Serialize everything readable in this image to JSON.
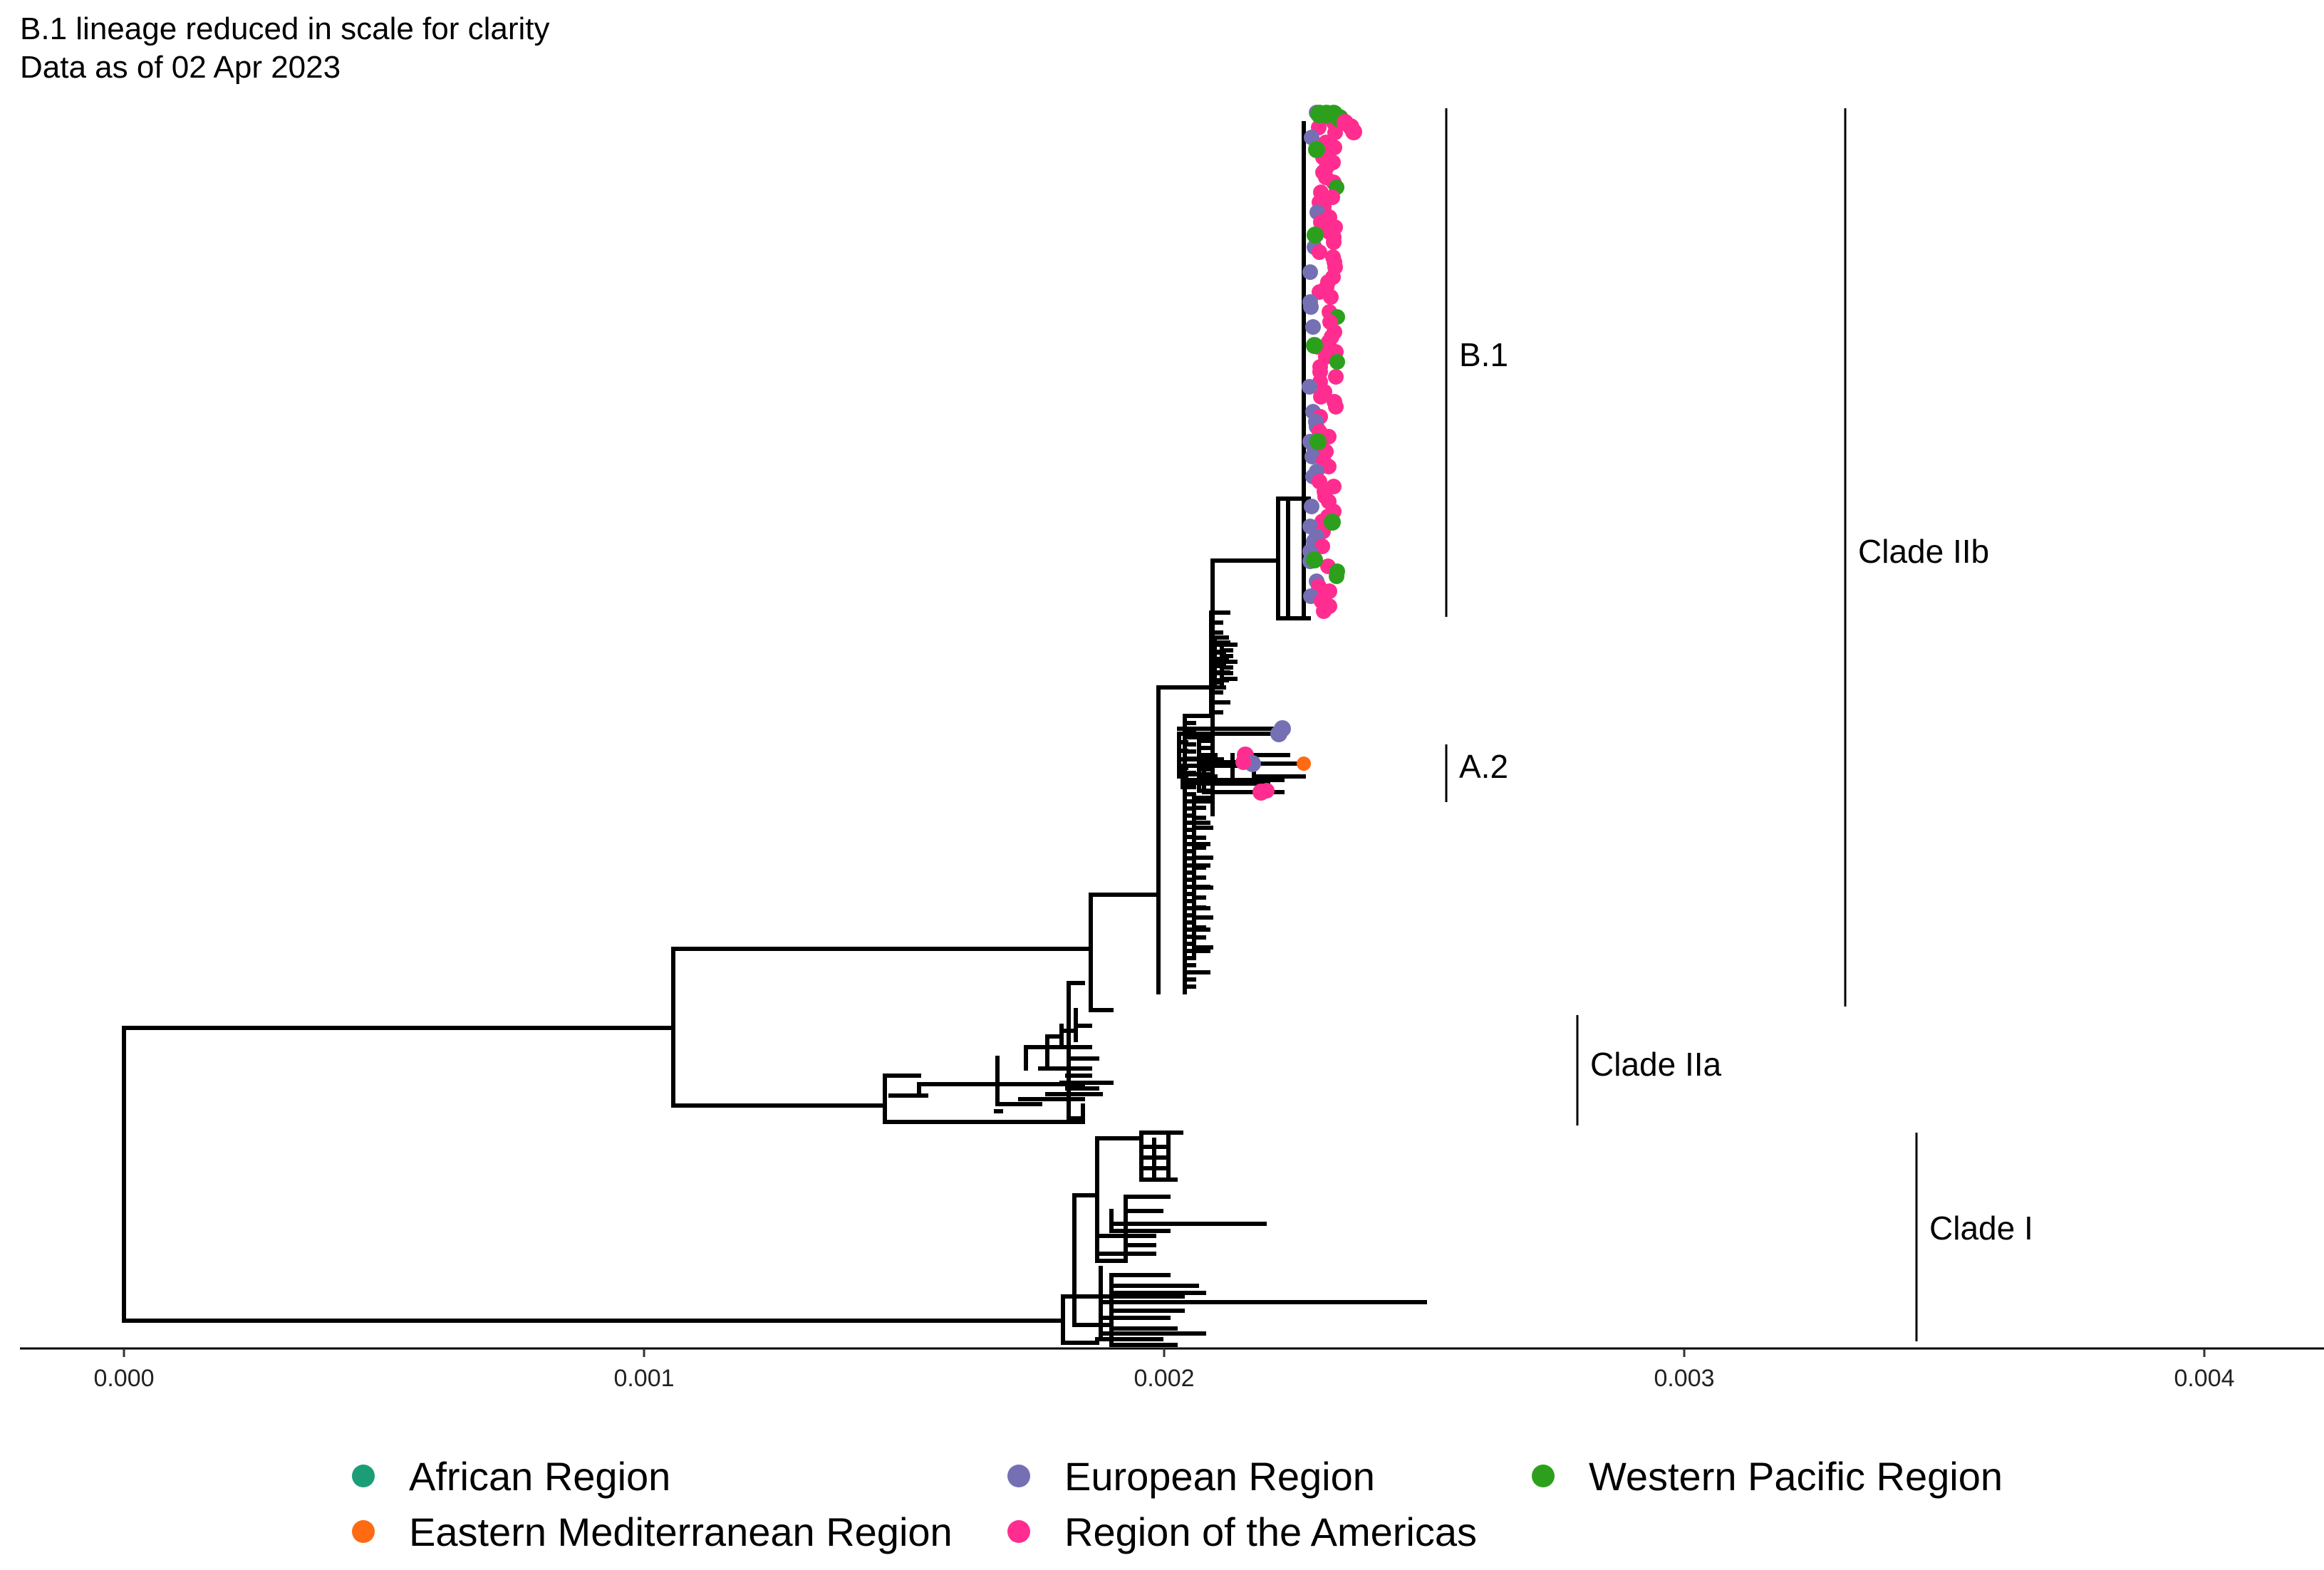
{
  "header": {
    "line1": "B.1 lineage reduced in scale for clarity",
    "line2": "Data as of 02 Apr 2023"
  },
  "chart_data": {
    "type": "scatter",
    "subtype": "phylogenetic-tree",
    "title": "",
    "xlabel": "",
    "ylabel": "",
    "xlim": [
      -0.0002,
      0.0042
    ],
    "x_ticks": [
      "0.000",
      "0.001",
      "0.002",
      "0.003",
      "0.004"
    ],
    "x_tick_values": [
      0.0,
      0.001,
      0.002,
      0.003,
      0.004
    ],
    "grid": false,
    "legend_position": "bottom",
    "clades": [
      {
        "label": "B.1",
        "x": 0.00255,
        "span": "upper B.1 block"
      },
      {
        "label": "A.2",
        "x": 0.00255,
        "span": "small A.2 group"
      },
      {
        "label": "Clade IIb",
        "x": 0.0033,
        "span": "IIb"
      },
      {
        "label": "Clade IIa",
        "x": 0.0028,
        "span": "IIa"
      },
      {
        "label": "Clade I",
        "x": 0.00344,
        "span": "I"
      }
    ],
    "series": [
      {
        "name": "African Region",
        "color": "#1b9e77"
      },
      {
        "name": "Eastern Mediterranean Region",
        "color": "#ff6a13"
      },
      {
        "name": "European Region",
        "color": "#7570b3"
      },
      {
        "name": "Region of the Americas",
        "color": "#ff2d8f"
      },
      {
        "name": "Western Pacific Region",
        "color": "#2ca01c"
      }
    ],
    "tips": [
      {
        "region": "Eastern Mediterranean Region",
        "x": 0.00227,
        "note": "A.2 tip"
      },
      {
        "region": "European Region",
        "x": 0.00222,
        "note": "A.2 tip"
      },
      {
        "region": "European Region",
        "x": 0.00221,
        "note": "A.2 tip"
      },
      {
        "region": "Region of the Americas",
        "x": 0.00219,
        "note": "A.2 tip"
      },
      {
        "region": "Region of the Americas",
        "x": 0.00215,
        "note": "A.2 tip"
      },
      {
        "region": "European Region",
        "x": 0.00217,
        "note": "A.2 tip"
      }
    ]
  }
}
